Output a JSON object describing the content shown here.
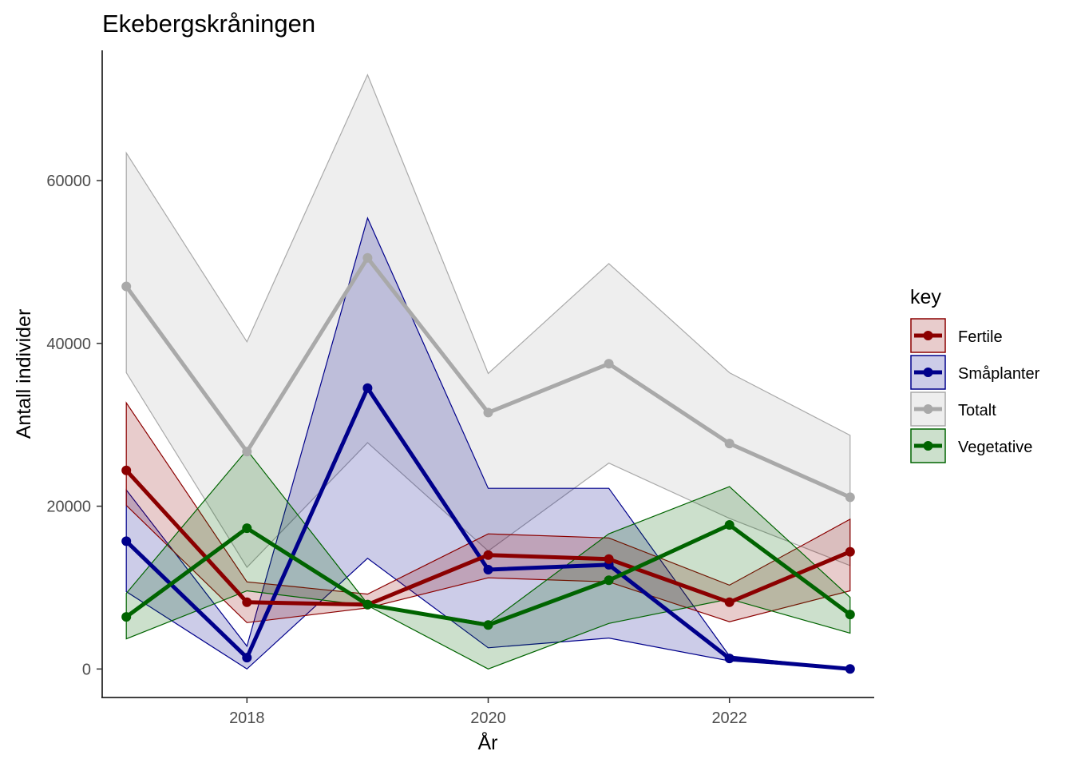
{
  "chart_data": {
    "type": "line",
    "title": "Ekebergskråningen",
    "xlabel": "År",
    "ylabel": "Antall individer",
    "xlim": [
      2016.8,
      2023.2
    ],
    "ylim": [
      -3500,
      76000
    ],
    "x_ticks": [
      2018,
      2020,
      2022
    ],
    "y_ticks": [
      0,
      20000,
      40000,
      60000
    ],
    "grid": false,
    "legend": {
      "title": "key",
      "position": "right"
    },
    "x": [
      2017,
      2018,
      2019,
      2020,
      2021,
      2022,
      2023
    ],
    "series": [
      {
        "name": "Totalt",
        "color": "#a9a9a9",
        "fill": "#d9d9d9",
        "values": [
          47000,
          26700,
          50500,
          31500,
          37500,
          27700,
          21100
        ],
        "lower": [
          36400,
          12500,
          27800,
          14500,
          25300,
          18500,
          12700
        ],
        "upper": [
          63400,
          40200,
          73000,
          36300,
          49800,
          36400,
          28700
        ]
      },
      {
        "name": "Småplanter",
        "color": "#00008b",
        "fill": "#00008b",
        "values": [
          15700,
          1400,
          34500,
          12200,
          12800,
          1300,
          0
        ],
        "lower": [
          9500,
          0,
          13600,
          2600,
          3800,
          1000,
          0
        ],
        "upper": [
          22000,
          2800,
          55400,
          22200,
          22200,
          1600,
          0
        ]
      },
      {
        "name": "Fertile",
        "color": "#8b0000",
        "fill": "#8b0000",
        "values": [
          24400,
          8200,
          7900,
          14000,
          13500,
          8200,
          14400
        ],
        "lower": [
          20100,
          5700,
          7500,
          11200,
          10700,
          5800,
          9600
        ],
        "upper": [
          32700,
          10700,
          9200,
          16600,
          16100,
          10300,
          18400
        ]
      },
      {
        "name": "Vegetative",
        "color": "#006400",
        "fill": "#006400",
        "values": [
          6400,
          17300,
          7900,
          5400,
          10900,
          17700,
          6700
        ],
        "lower": [
          3700,
          9600,
          7800,
          0,
          5600,
          8600,
          4400
        ],
        "upper": [
          9300,
          26900,
          8000,
          5600,
          16600,
          22400,
          8800
        ]
      }
    ],
    "legend_order": [
      "Fertile",
      "Småplanter",
      "Totalt",
      "Vegetative"
    ]
  }
}
